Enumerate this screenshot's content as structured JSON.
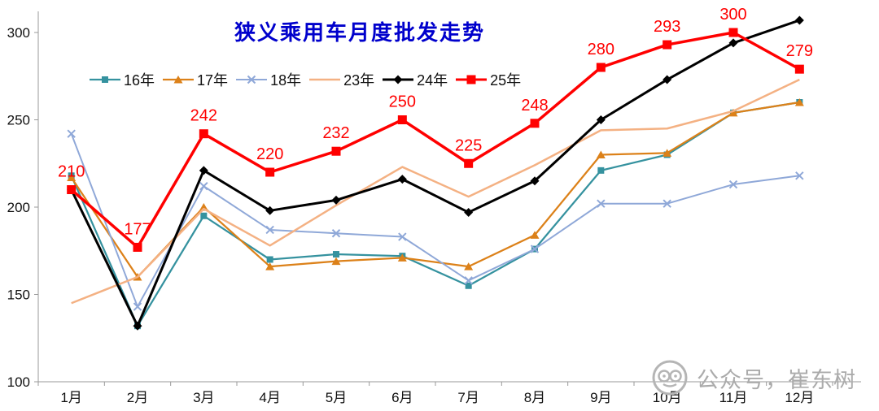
{
  "watermark": {
    "text": "公众号，崔东树"
  },
  "colors": {
    "title": "#0000cc",
    "axis": "#9a9a9a",
    "tick_text": "#111111",
    "watermark": "#ababab",
    "data_label": "#ff0000"
  },
  "chart_data": {
    "type": "line",
    "title": "狭义乘用车月度批发走势",
    "categories": [
      "1月",
      "2月",
      "3月",
      "4月",
      "5月",
      "6月",
      "7月",
      "8月",
      "9月",
      "10月",
      "11月",
      "12月"
    ],
    "y_ticks": [
      100,
      150,
      200,
      250,
      300
    ],
    "ylim": [
      100,
      310
    ],
    "grid": false,
    "legend_position": "top",
    "series": [
      {
        "name": "16年",
        "color": "#35929F",
        "marker": "square",
        "width": 2.25,
        "values": [
          218,
          132,
          195,
          170,
          173,
          172,
          155,
          176,
          221,
          230,
          254,
          260
        ]
      },
      {
        "name": "17年",
        "color": "#DC8119",
        "marker": "triangle",
        "width": 2.25,
        "values": [
          217,
          160,
          200,
          166,
          169,
          171,
          166,
          184,
          230,
          231,
          254,
          260
        ]
      },
      {
        "name": "18年",
        "color": "#8FA8D8",
        "marker": "x",
        "width": 2,
        "values": [
          242,
          143,
          212,
          187,
          185,
          183,
          158,
          176,
          202,
          202,
          213,
          218
        ]
      },
      {
        "name": "23年",
        "color": "#F4B183",
        "marker": "none",
        "width": 2.5,
        "values": [
          145,
          160,
          199,
          178,
          201,
          223,
          206,
          224,
          244,
          245,
          255,
          273
        ]
      },
      {
        "name": "24年",
        "color": "#000000",
        "marker": "diamond",
        "width": 3,
        "values": [
          210,
          132,
          221,
          198,
          204,
          216,
          197,
          215,
          250,
          273,
          294,
          307
        ]
      },
      {
        "name": "25年",
        "color": "#FF0000",
        "marker": "square-large",
        "width": 3.5,
        "values": [
          210,
          177,
          242,
          220,
          232,
          250,
          225,
          248,
          280,
          293,
          300,
          279
        ],
        "data_labels": true,
        "label_color": "#FF0000"
      }
    ]
  }
}
